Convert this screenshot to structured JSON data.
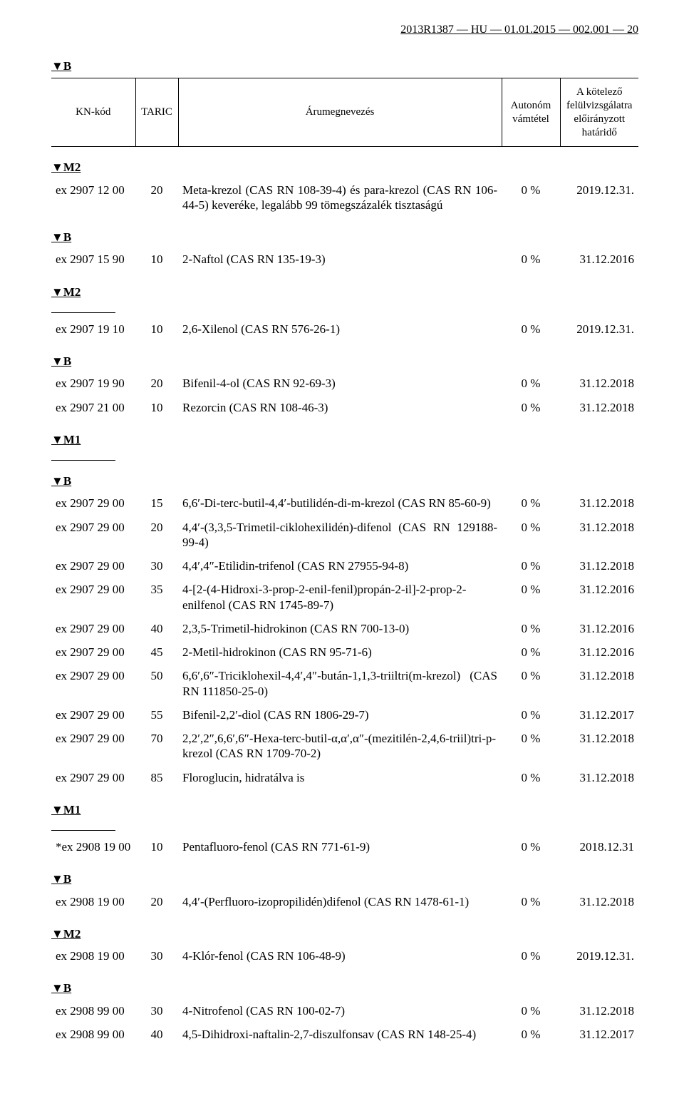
{
  "running_head": "2013R1387 — HU — 01.01.2015 — 002.001 — 20",
  "markers": {
    "B": "▼B",
    "M1": "▼M1",
    "M2": "▼M2"
  },
  "header": {
    "kn": "KN-kód",
    "taric": "TARIC",
    "desc": "Árumegnevezés",
    "duty": "Autonóm vámtétel",
    "deadline": "A kötelező felülvizsgálatra előirányzott határidő"
  },
  "groups": [
    {
      "pre_marker": "M2",
      "rows": [
        {
          "kn": "ex 2907 12 00",
          "taric": "20",
          "desc": "Meta-krezol (CAS RN 108-39-4) és para-krezol (CAS RN 106-44-5) keveréke, legalább 99 tömegszázalék tisztaságú",
          "duty": "0 %",
          "deadline": "2019.12.31."
        }
      ]
    },
    {
      "pre_marker": "B",
      "post_marker": "M2",
      "rows": [
        {
          "kn": "ex 2907 15 90",
          "taric": "10",
          "desc": "2-Naftol (CAS RN 135-19-3)",
          "duty": "0 %",
          "deadline": "31.12.2016"
        }
      ]
    },
    {
      "divider": true,
      "rows": [
        {
          "kn": "ex 2907 19 10",
          "taric": "10",
          "desc": "2,6-Xilenol (CAS RN 576-26-1)",
          "duty": "0 %",
          "deadline": "2019.12.31."
        }
      ]
    },
    {
      "pre_marker": "B",
      "post_marker": "M1",
      "rows": [
        {
          "kn": "ex 2907 19 90",
          "taric": "20",
          "desc": "Bifenil-4-ol (CAS RN 92-69-3)",
          "duty": "0 %",
          "deadline": "31.12.2018"
        },
        {
          "kn": "ex 2907 21 00",
          "taric": "10",
          "desc": "Rezorcin (CAS RN 108-46-3)",
          "duty": "0 %",
          "deadline": "31.12.2018"
        }
      ]
    },
    {
      "divider": true,
      "pre_marker": "B",
      "post_marker": "M1",
      "rows": [
        {
          "kn": "ex 2907 29 00",
          "taric": "15",
          "desc": "6,6′-Di-terc-butil-4,4′-butilidén-di-m-krezol (CAS RN 85-60-9)",
          "duty": "0 %",
          "deadline": "31.12.2018"
        },
        {
          "kn": "ex 2907 29 00",
          "taric": "20",
          "desc": "4,4′-(3,3,5-Trimetil-ciklohexilidén)-difenol (CAS RN 129188-99-4)",
          "duty": "0 %",
          "deadline": "31.12.2018"
        },
        {
          "kn": "ex 2907 29 00",
          "taric": "30",
          "desc": "4,4′,4″-Etilidin-trifenol (CAS RN 27955-94-8)",
          "duty": "0 %",
          "deadline": "31.12.2018"
        },
        {
          "kn": "ex 2907 29 00",
          "taric": "35",
          "desc": "4-[2-(4-Hidroxi-3-prop-2-enil-fenil)propán-2-il]-2-prop-2-enilfenol (CAS RN 1745-89-7)",
          "duty": "0 %",
          "deadline": "31.12.2016"
        },
        {
          "kn": "ex 2907 29 00",
          "taric": "40",
          "desc": "2,3,5-Trimetil-hidrokinon (CAS RN 700-13-0)",
          "duty": "0 %",
          "deadline": "31.12.2016"
        },
        {
          "kn": "ex 2907 29 00",
          "taric": "45",
          "desc": "2-Metil-hidrokinon (CAS RN 95-71-6)",
          "duty": "0 %",
          "deadline": "31.12.2016"
        },
        {
          "kn": "ex 2907 29 00",
          "taric": "50",
          "desc": "6,6′,6″-Triciklohexil-4,4′,4″-bután-1,1,3-triiltri(m-krezol) (CAS RN 111850-25-0)",
          "duty": "0 %",
          "deadline": "31.12.2018"
        },
        {
          "kn": "ex 2907 29 00",
          "taric": "55",
          "desc": "Bifenil-2,2′-diol (CAS RN 1806-29-7)",
          "duty": "0 %",
          "deadline": "31.12.2017"
        },
        {
          "kn": "ex 2907 29 00",
          "taric": "70",
          "desc": "2,2′,2″,6,6′,6″-Hexa-terc-butil-α,α′,α″-(mezitilén-2,4,6-triil)tri-p-krezol (CAS RN 1709-70-2)",
          "duty": "0 %",
          "deadline": "31.12.2018"
        },
        {
          "kn": "ex 2907 29 00",
          "taric": "85",
          "desc": "Floroglucin, hidratálva is",
          "duty": "0 %",
          "deadline": "31.12.2018"
        }
      ]
    },
    {
      "divider": true,
      "rows": [
        {
          "kn": "*ex 2908 19 00",
          "taric": "10",
          "desc": "Pentafluoro-fenol (CAS RN 771-61-9)",
          "duty": "0 %",
          "deadline": "2018.12.31"
        }
      ]
    },
    {
      "pre_marker": "B",
      "rows": [
        {
          "kn": "ex 2908 19 00",
          "taric": "20",
          "desc": "4,4′-(Perfluoro-izopropilidén)difenol (CAS RN 1478-61-1)",
          "duty": "0 %",
          "deadline": "31.12.2018"
        }
      ]
    },
    {
      "pre_marker": "M2",
      "rows": [
        {
          "kn": "ex 2908 19 00",
          "taric": "30",
          "desc": "4-Klór-fenol (CAS RN 106-48-9)",
          "duty": "0 %",
          "deadline": "2019.12.31."
        }
      ]
    },
    {
      "pre_marker": "B",
      "rows": [
        {
          "kn": "ex 2908 99 00",
          "taric": "30",
          "desc": "4-Nitrofenol (CAS RN 100-02-7)",
          "duty": "0 %",
          "deadline": "31.12.2018"
        },
        {
          "kn": "ex 2908 99 00",
          "taric": "40",
          "desc": "4,5-Dihidroxi-naftalin-2,7-diszulfonsav (CAS RN 148-25-4)",
          "duty": "0 %",
          "deadline": "31.12.2017"
        }
      ]
    }
  ]
}
